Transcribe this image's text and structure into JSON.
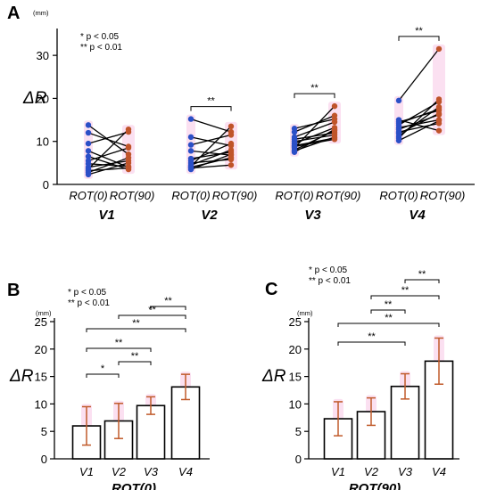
{
  "chart_data": [
    {
      "panel": "A",
      "type": "scatter",
      "ylabel": "ΔR",
      "y_unit": "(mm)",
      "ylim": [
        0,
        35
      ],
      "yticks": [
        0,
        10,
        20,
        30
      ],
      "significance_legend": [
        "* p < 0.05",
        "** p < 0.01"
      ],
      "condition_labels": [
        "ROT(0)",
        "ROT(90)"
      ],
      "groups": [
        {
          "name": "V1",
          "rot0": [
            13.8,
            12.0,
            9.5,
            7.8,
            6.5,
            5.5,
            4.8,
            4.0,
            3.6,
            3.2,
            2.8,
            2.3
          ],
          "rot90": [
            7.0,
            8.8,
            12.2,
            4.0,
            3.5,
            8.5,
            4.2,
            5.5,
            12.8,
            3.8,
            6.2,
            5.0
          ],
          "significance": ""
        },
        {
          "name": "V2",
          "rot0": [
            15.2,
            11.0,
            9.2,
            7.8,
            6.0,
            5.5,
            5.0,
            4.5,
            4.2,
            4.0,
            3.8,
            3.5
          ],
          "rot90": [
            12.2,
            9.0,
            11.5,
            6.8,
            7.5,
            9.5,
            5.8,
            8.0,
            13.5,
            6.2,
            4.5,
            7.0
          ],
          "significance": "**"
        },
        {
          "name": "V3",
          "rot0": [
            13.0,
            12.2,
            11.0,
            10.5,
            10.0,
            9.5,
            9.0,
            8.8,
            8.5,
            8.0,
            7.8,
            7.5
          ],
          "rot90": [
            15.2,
            16.0,
            14.5,
            12.0,
            11.5,
            13.2,
            10.8,
            10.5,
            18.2,
            12.5,
            11.0,
            12.8
          ],
          "significance": "**"
        },
        {
          "name": "V4",
          "rot0": [
            19.5,
            14.5,
            13.8,
            13.2,
            12.8,
            12.2,
            11.8,
            11.2,
            10.8,
            10.2,
            15.0,
            14.2
          ],
          "rot90": [
            31.5,
            17.2,
            19.2,
            15.0,
            16.2,
            14.2,
            16.5,
            18.0,
            19.8,
            14.8,
            12.5,
            17.5
          ],
          "significance": "**"
        }
      ]
    },
    {
      "panel": "B",
      "type": "bar",
      "title": "ROT(0)",
      "ylabel": "ΔR",
      "y_unit": "(mm)",
      "ylim": [
        0,
        25
      ],
      "yticks": [
        0,
        5,
        10,
        15,
        20,
        25
      ],
      "categories": [
        "V1",
        "V2",
        "V3",
        "V4"
      ],
      "values": [
        6.0,
        6.9,
        9.7,
        13.1
      ],
      "errors": [
        3.5,
        3.2,
        1.6,
        2.3
      ],
      "significance_legend": [
        "* p < 0.05",
        "** p < 0.01"
      ],
      "comparisons": [
        {
          "from": "V3",
          "to": "V4",
          "stars": "**"
        },
        {
          "from": "V2",
          "to": "V4",
          "stars": "**"
        },
        {
          "from": "V1",
          "to": "V4",
          "stars": "**"
        },
        {
          "from": "V1",
          "to": "V3",
          "stars": "**"
        },
        {
          "from": "V2",
          "to": "V3",
          "stars": "**"
        },
        {
          "from": "V1",
          "to": "V2",
          "stars": "*"
        }
      ]
    },
    {
      "panel": "C",
      "type": "bar",
      "title": "ROT(90)",
      "ylabel": "ΔR",
      "y_unit": "(mm)",
      "ylim": [
        0,
        25
      ],
      "yticks": [
        0,
        5,
        10,
        15,
        20,
        25
      ],
      "categories": [
        "V1",
        "V2",
        "V3",
        "V4"
      ],
      "values": [
        7.3,
        8.6,
        13.2,
        17.8
      ],
      "errors": [
        3.1,
        2.5,
        2.3,
        4.2
      ],
      "significance_legend": [
        "* p < 0.05",
        "** p < 0.01"
      ],
      "comparisons": [
        {
          "from": "V3",
          "to": "V4",
          "stars": "**"
        },
        {
          "from": "V2",
          "to": "V4",
          "stars": "**"
        },
        {
          "from": "V2",
          "to": "V3",
          "stars": "**"
        },
        {
          "from": "V1",
          "to": "V4",
          "stars": "**"
        },
        {
          "from": "V1",
          "to": "V3",
          "stars": "**"
        }
      ]
    }
  ],
  "colors": {
    "rot0_point": "#2b4fc7",
    "rot90_point": "#c0542a",
    "error_bar": "#c05a2a",
    "highlight": "#f3a6d8"
  }
}
